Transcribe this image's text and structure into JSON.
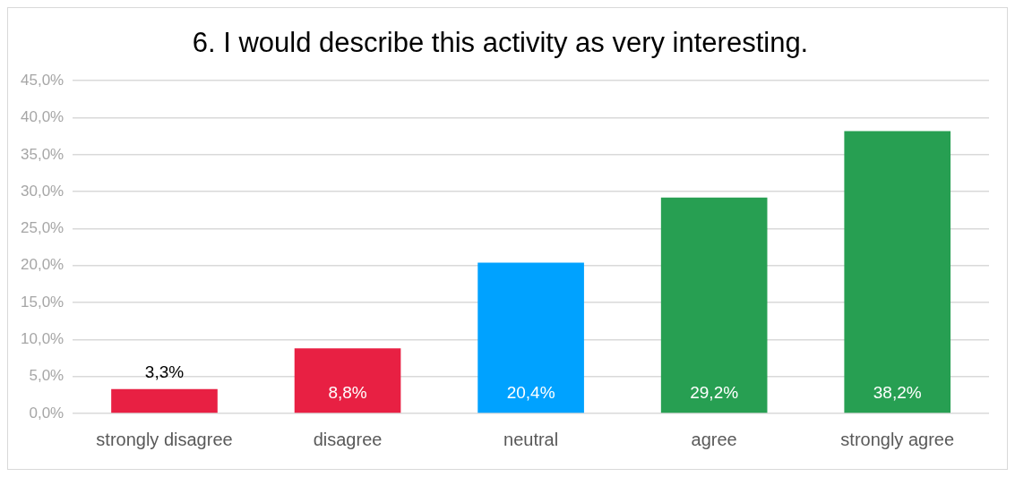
{
  "chart_data": {
    "type": "bar",
    "title": "6. I would describe this activity as very interesting.",
    "categories": [
      "strongly disagree",
      "disagree",
      "neutral",
      "agree",
      "strongly agree"
    ],
    "values": [
      3.3,
      8.8,
      20.4,
      29.2,
      38.2
    ],
    "colors": [
      "#e82043",
      "#e82043",
      "#00a2ff",
      "#279f52",
      "#279f52"
    ],
    "value_labels": [
      "3,3%",
      "8,8%",
      "20,4%",
      "29,2%",
      "38,2%"
    ],
    "ylim": [
      0,
      45
    ],
    "yticks": [
      {
        "value": 0,
        "label": "0,0%"
      },
      {
        "value": 5,
        "label": "5,0%"
      },
      {
        "value": 10,
        "label": "10,0%"
      },
      {
        "value": 15,
        "label": "15,0%"
      },
      {
        "value": 20,
        "label": "20,0%"
      },
      {
        "value": 25,
        "label": "25,0%"
      },
      {
        "value": 30,
        "label": "30,0%"
      },
      {
        "value": 35,
        "label": "35,0%"
      },
      {
        "value": 40,
        "label": "40,0%"
      },
      {
        "value": 45,
        "label": "45,0%"
      }
    ],
    "grid": "y",
    "legend": false
  }
}
